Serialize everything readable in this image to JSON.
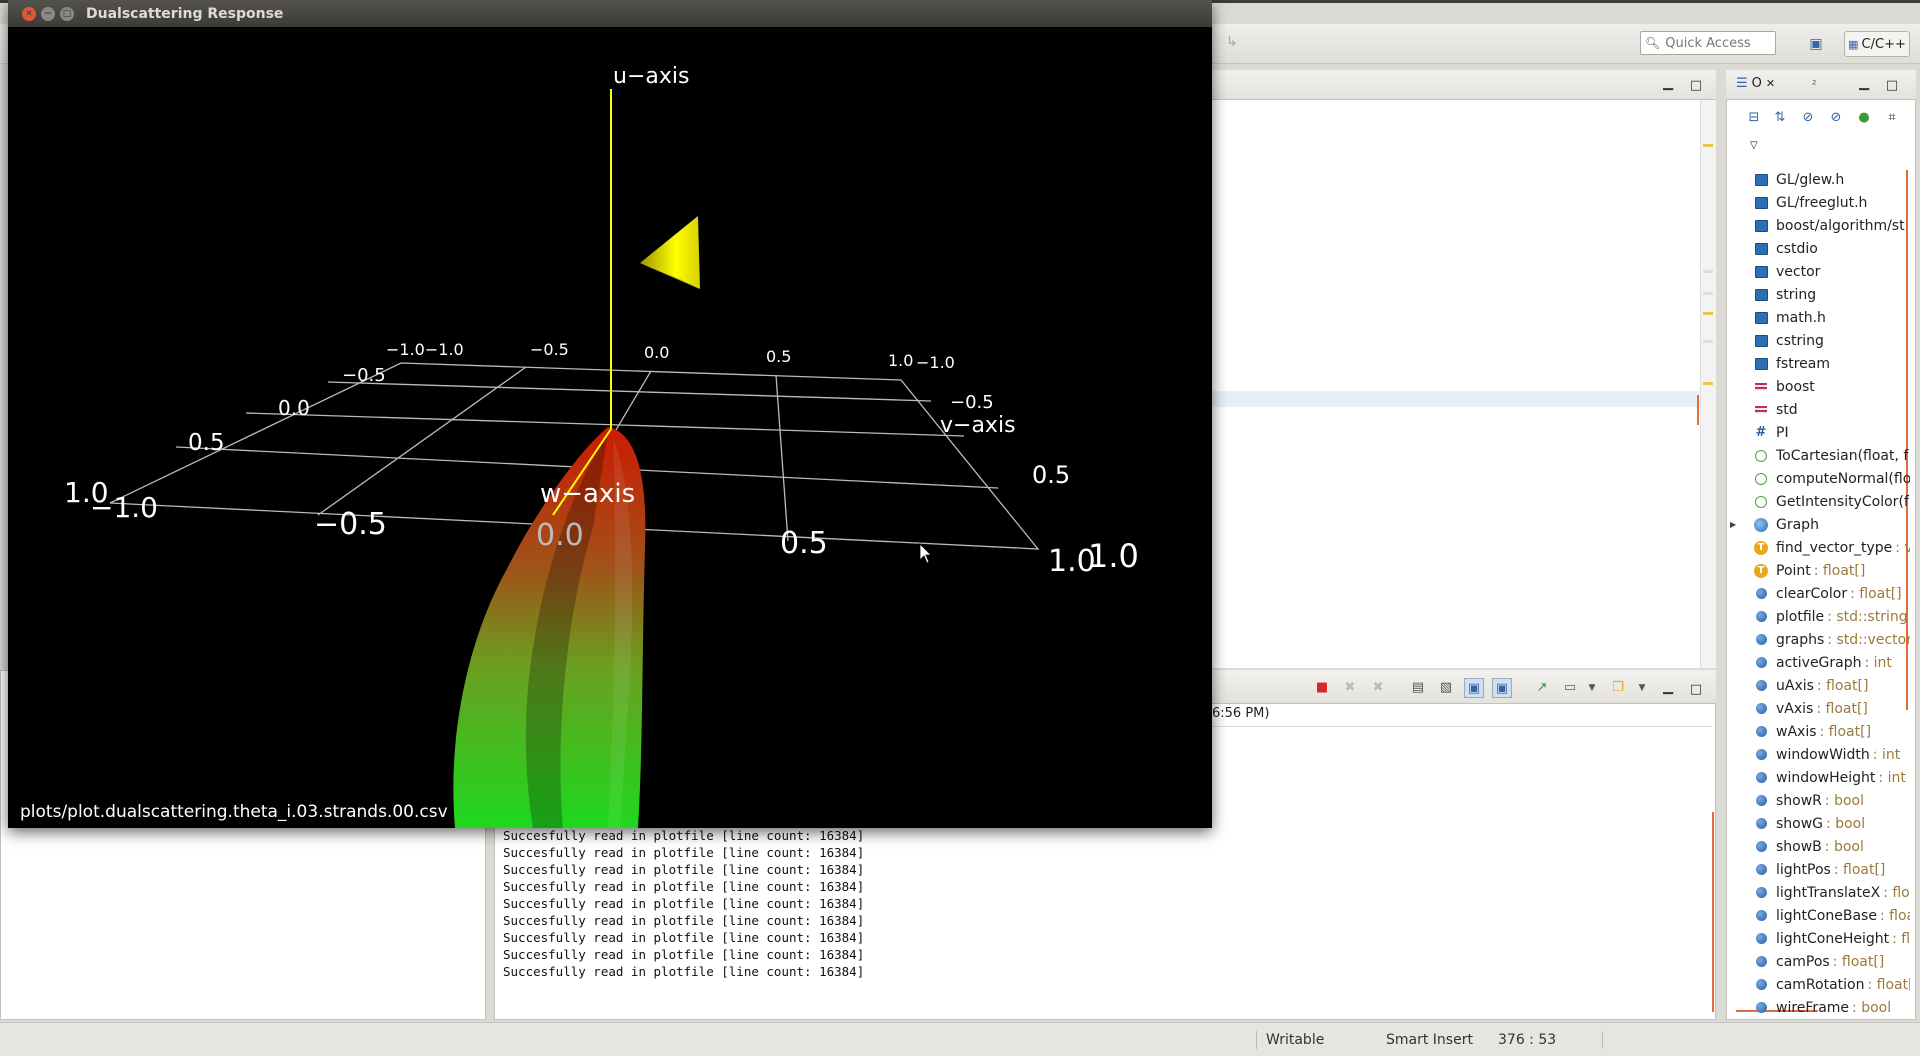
{
  "gl_window": {
    "title": "Dualscattering Response",
    "caption": "plots/plot.dualscattering.theta_i.03.strands.00.csv",
    "axis_labels": {
      "u": "u−axis",
      "v": "v−axis",
      "w": "w−axis"
    },
    "ticks": {
      "back_edge": [
        "−1.0−1.0",
        "−0.5",
        "0.0",
        "0.5",
        "1.0",
        "−1.0"
      ],
      "left_edge": [
        "−0.5",
        "0.0",
        "0.5",
        "1.0"
      ],
      "right_edge": [
        "−0.5",
        "0.5",
        "1.0"
      ],
      "front_edge": [
        "−1.0",
        "−0.5",
        "0.0",
        "0.5",
        "1.0"
      ]
    },
    "colors": {
      "u_axis": "#ffff00",
      "grid": "#bbbbbb",
      "lobe_near": "#cc1a00",
      "lobe_far": "#1ed81e"
    }
  },
  "toolbar": {
    "quick_access_placeholder": "Quick Access",
    "perspective": "C/C++"
  },
  "console": {
    "title_fragment": "6:56 PM)",
    "lines": [
      "Succesfully read in plotfile [line count: 16384]",
      "Succesfully read in plotfile [line count: 16384]",
      "Succesfully read in plotfile [line count: 16384]",
      "Succesfully read in plotfile [line count: 16384]",
      "Succesfully read in plotfile [line count: 16384]",
      "Succesfully read in plotfile [line count: 16384]",
      "Succesfully read in plotfile [line count: 16384]",
      "Succesfully read in plotfile [line count: 16384]",
      "Succesfully read in plotfile [line count: 16384]"
    ]
  },
  "outline": {
    "tab_label": "O",
    "tab2_label": "²",
    "items": [
      {
        "kind": "include",
        "name": "GL/glew.h",
        "type": ""
      },
      {
        "kind": "include",
        "name": "GL/freeglut.h",
        "type": ""
      },
      {
        "kind": "include",
        "name": "boost/algorithm/st",
        "type": ""
      },
      {
        "kind": "include",
        "name": "cstdio",
        "type": ""
      },
      {
        "kind": "include",
        "name": "vector",
        "type": ""
      },
      {
        "kind": "include",
        "name": "string",
        "type": ""
      },
      {
        "kind": "include",
        "name": "math.h",
        "type": ""
      },
      {
        "kind": "include",
        "name": "cstring",
        "type": ""
      },
      {
        "kind": "include",
        "name": "fstream",
        "type": ""
      },
      {
        "kind": "namespace",
        "name": "boost",
        "type": ""
      },
      {
        "kind": "namespace",
        "name": "std",
        "type": ""
      },
      {
        "kind": "macro",
        "name": "PI",
        "type": ""
      },
      {
        "kind": "function",
        "name": "ToCartesian(float, f",
        "type": ""
      },
      {
        "kind": "function",
        "name": "computeNormal(flo",
        "type": ""
      },
      {
        "kind": "function",
        "name": "GetIntensityColor(f",
        "type": ""
      },
      {
        "kind": "class",
        "name": "Graph",
        "type": ""
      },
      {
        "kind": "typedef",
        "name": "find_vector_type",
        "type": ": v"
      },
      {
        "kind": "typedef",
        "name": "Point",
        "type": ": float[]"
      },
      {
        "kind": "variable",
        "name": "clearColor",
        "type": ": float[]"
      },
      {
        "kind": "variable",
        "name": "plotfile",
        "type": ": std::string"
      },
      {
        "kind": "variable",
        "name": "graphs",
        "type": ": std::vector"
      },
      {
        "kind": "variable",
        "name": "activeGraph",
        "type": ": int"
      },
      {
        "kind": "variable",
        "name": "uAxis",
        "type": ": float[]"
      },
      {
        "kind": "variable",
        "name": "vAxis",
        "type": ": float[]"
      },
      {
        "kind": "variable",
        "name": "wAxis",
        "type": ": float[]"
      },
      {
        "kind": "variable",
        "name": "windowWidth",
        "type": ": int"
      },
      {
        "kind": "variable",
        "name": "windowHeight",
        "type": ": int"
      },
      {
        "kind": "variable",
        "name": "showR",
        "type": ": bool"
      },
      {
        "kind": "variable",
        "name": "showG",
        "type": ": bool"
      },
      {
        "kind": "variable",
        "name": "showB",
        "type": ": bool"
      },
      {
        "kind": "variable",
        "name": "lightPos",
        "type": ": float[]"
      },
      {
        "kind": "variable",
        "name": "lightTranslateX",
        "type": ": floa"
      },
      {
        "kind": "variable",
        "name": "lightConeBase",
        "type": ": floa"
      },
      {
        "kind": "variable",
        "name": "lightConeHeight",
        "type": ": flo"
      },
      {
        "kind": "variable",
        "name": "camPos",
        "type": ": float[]"
      },
      {
        "kind": "variable",
        "name": "camRotation",
        "type": ": float["
      },
      {
        "kind": "variable",
        "name": "wireFrame",
        "type": ": bool"
      }
    ]
  },
  "status": {
    "writable": "Writable",
    "insert_mode": "Smart Insert",
    "position": "376 : 53"
  }
}
